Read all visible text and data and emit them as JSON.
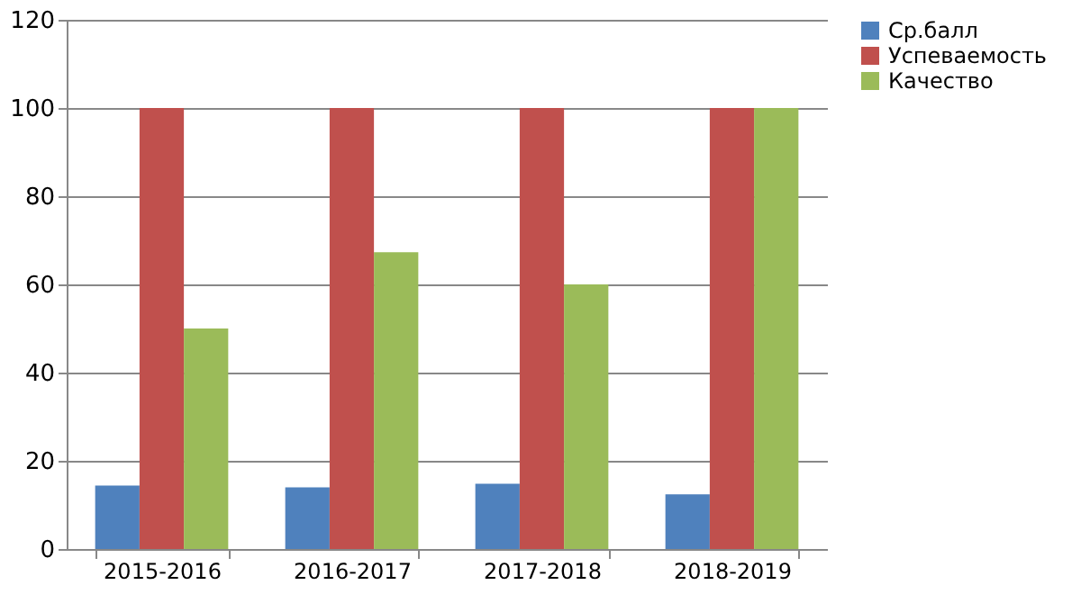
{
  "chart_data": {
    "type": "bar",
    "categories": [
      "2015-2016",
      "2016-2017",
      "2017-2018",
      "2018-2019"
    ],
    "series": [
      {
        "name": "Ср.балл",
        "color": "#4f81bd",
        "values": [
          14.4,
          14.0,
          14.8,
          12.4
        ]
      },
      {
        "name": "Успеваемость",
        "color": "#c0504d",
        "values": [
          100,
          100,
          100,
          100
        ]
      },
      {
        "name": "Качество",
        "color": "#9bbb59",
        "values": [
          50,
          67.3,
          60,
          100
        ]
      }
    ],
    "ylim": [
      0,
      120
    ],
    "yticks": [
      0,
      20,
      40,
      60,
      80,
      100,
      120
    ],
    "grid": "y",
    "legend": "right"
  }
}
